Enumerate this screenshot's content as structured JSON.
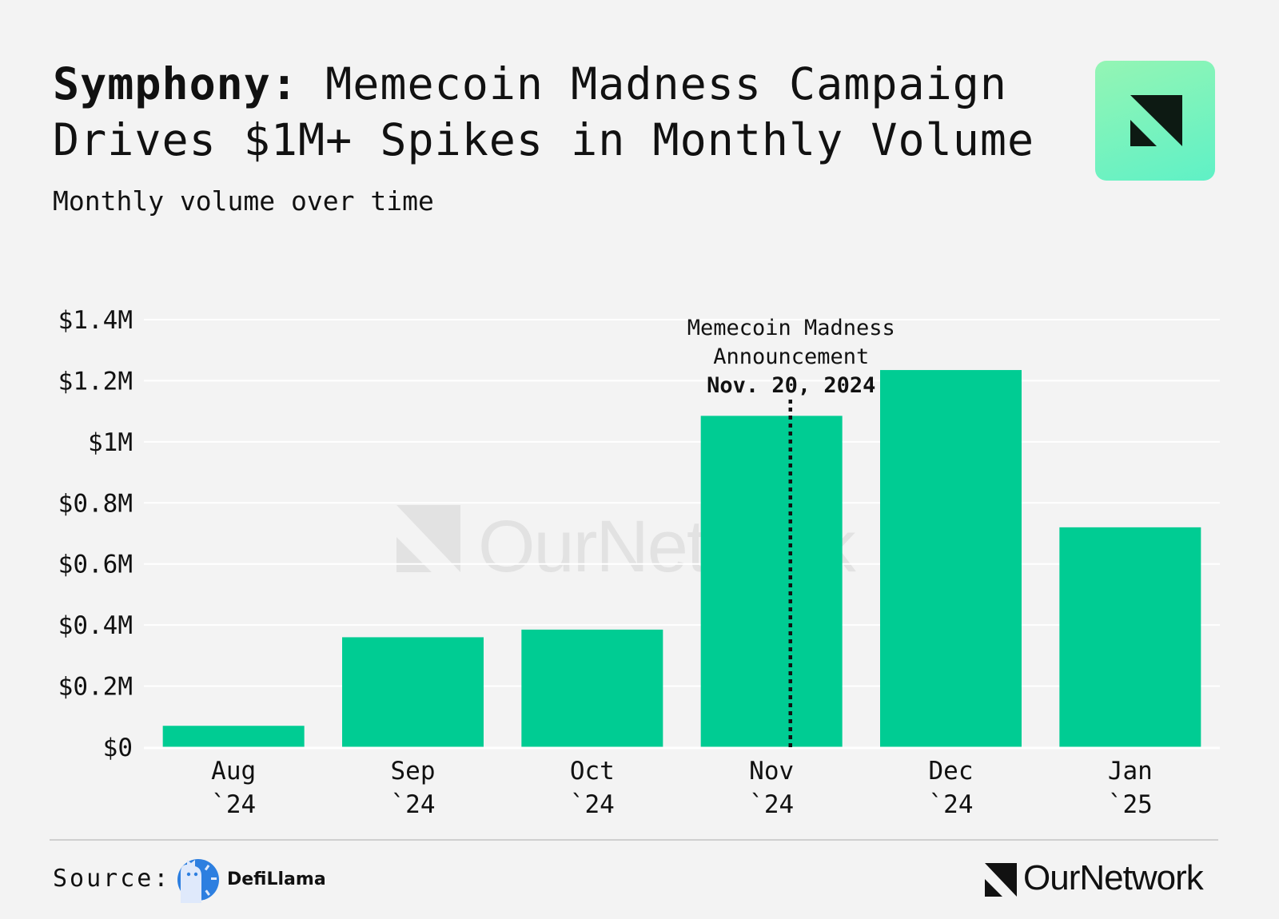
{
  "header": {
    "title_bold": "Symphony:",
    "title_rest": "Memecoin Madness Campaign Drives $1M+ Spikes in Monthly Volume",
    "subtitle": "Monthly volume over time"
  },
  "chart_data": {
    "type": "bar",
    "categories": [
      [
        "Aug",
        "`24"
      ],
      [
        "Sep",
        "`24"
      ],
      [
        "Oct",
        "`24"
      ],
      [
        "Nov",
        "`24"
      ],
      [
        "Dec",
        "`24"
      ],
      [
        "Jan",
        "`25"
      ]
    ],
    "values": [
      70000,
      360000,
      385000,
      1085000,
      1235000,
      720000
    ],
    "ylim": [
      0,
      1400000
    ],
    "yticks": [
      0,
      200000,
      400000,
      600000,
      800000,
      1000000,
      1200000,
      1400000
    ],
    "ytick_labels": [
      "$0",
      "$0.2M",
      "$0.4M",
      "$0.6M",
      "$0.8M",
      "$1M",
      "$1.2M",
      "$1.4M"
    ],
    "grid": true,
    "bar_color": "#00cc93",
    "annotation": {
      "date_value": "2024-11-20",
      "lines": [
        "Memecoin Madness",
        "Announcement"
      ],
      "date_label": "Nov. 20, 2024"
    }
  },
  "watermark": "OurNetwork",
  "footer": {
    "source_label": "Source:",
    "source_name": "DefiLlama",
    "brand": "OurNetwork"
  },
  "colors": {
    "background": "#f3f3f3",
    "bar": "#00cc93",
    "badge_top": "#94f5b4",
    "badge_bottom": "#5ff1c6"
  }
}
